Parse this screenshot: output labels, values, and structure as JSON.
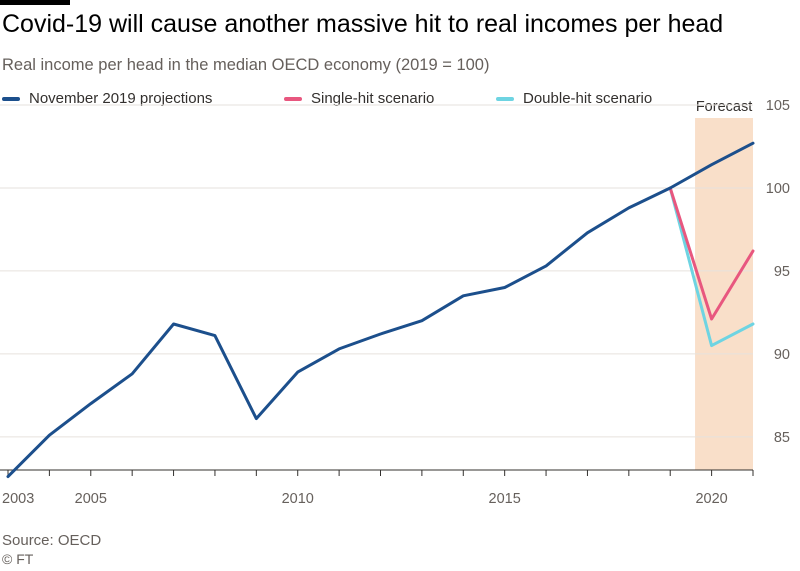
{
  "header": {
    "title": "Covid-19 will cause another massive hit to real incomes per head",
    "subtitle": "Real income per head in the median OECD economy (2019 = 100)"
  },
  "footer": {
    "source": "Source: OECD",
    "copyright": "© FT"
  },
  "colors": {
    "background": "#ffffff",
    "projection": "#1c4f8c",
    "single_hit": "#e8577f",
    "double_hit": "#6ed4e2",
    "forecast_shade": "#f9dfc9",
    "grid": "#e6e2dd",
    "axis": "#33302e"
  },
  "chart_data": {
    "type": "line",
    "title": "Covid-19 will cause another massive hit to real incomes per head",
    "subtitle": "Real income per head in the median OECD economy (2019 = 100)",
    "xlabel": "",
    "ylabel": "",
    "xlim": [
      2003,
      2021
    ],
    "ylim": [
      83,
      105
    ],
    "y_ticks": [
      85,
      90,
      95,
      100,
      105
    ],
    "x_ticks": [
      2003,
      2005,
      2010,
      2015,
      2020
    ],
    "y_axis_side": "right",
    "grid": true,
    "legend_position": "top",
    "forecast_region": {
      "start": 2019.6,
      "end": 2021,
      "label": "Forecast"
    },
    "series": [
      {
        "name": "November 2019 projections",
        "color": "#1c4f8c",
        "points": [
          [
            2003,
            82.6
          ],
          [
            2004,
            85.1
          ],
          [
            2005,
            87.0
          ],
          [
            2006,
            88.8
          ],
          [
            2007,
            91.8
          ],
          [
            2008,
            91.1
          ],
          [
            2009,
            86.1
          ],
          [
            2010,
            88.9
          ],
          [
            2011,
            90.3
          ],
          [
            2012,
            91.2
          ],
          [
            2013,
            92.0
          ],
          [
            2014,
            93.5
          ],
          [
            2015,
            94.0
          ],
          [
            2016,
            95.3
          ],
          [
            2017,
            97.3
          ],
          [
            2018,
            98.8
          ],
          [
            2019,
            100.0
          ],
          [
            2020,
            101.4
          ],
          [
            2021,
            102.7
          ]
        ]
      },
      {
        "name": "Single-hit scenario",
        "color": "#e8577f",
        "points": [
          [
            2019,
            100.0
          ],
          [
            2020,
            92.1
          ],
          [
            2021,
            96.2
          ]
        ]
      },
      {
        "name": "Double-hit scenario",
        "color": "#6ed4e2",
        "points": [
          [
            2019,
            100.0
          ],
          [
            2020,
            90.5
          ],
          [
            2021,
            91.8
          ]
        ]
      }
    ]
  }
}
